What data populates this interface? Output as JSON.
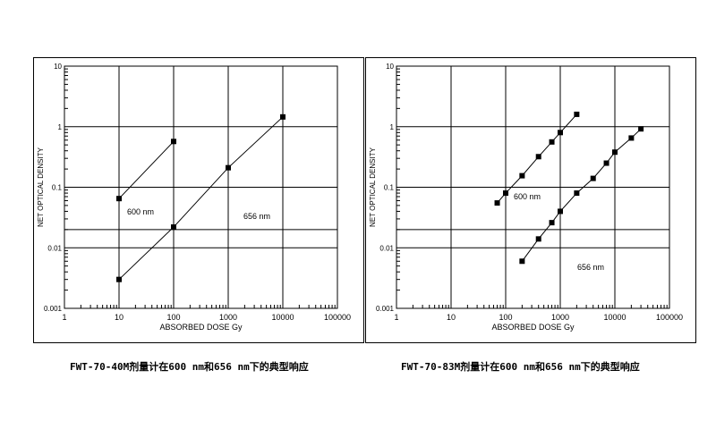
{
  "chart_data": [
    {
      "type": "scatter",
      "title": "",
      "xlabel": "ABSORBED DOSE Gy",
      "ylabel": "NET OPTICAL DENSITY",
      "xscale": "log",
      "yscale": "log",
      "xlim": [
        1,
        100000
      ],
      "ylim": [
        0.001,
        10
      ],
      "x_tick_labels": [
        "1",
        "10",
        "100",
        "1000",
        "10000",
        "100000"
      ],
      "y_tick_labels": [
        "0.001",
        "0.01",
        "0.1",
        "1",
        "10"
      ],
      "grid": "decades",
      "extra_hline": 0.02,
      "series": [
        {
          "name": "600 nm",
          "x": [
            10,
            100
          ],
          "y": [
            0.065,
            0.57
          ]
        },
        {
          "name": "656 nm",
          "x": [
            10,
            100,
            1000,
            10000
          ],
          "y": [
            0.003,
            0.022,
            0.21,
            1.45
          ]
        }
      ],
      "caption": "FWT-70-40M剂量计在600 nm和656 nm下的典型响应"
    },
    {
      "type": "scatter",
      "title": "",
      "xlabel": "ABSORBED DOSE Gy",
      "ylabel": "NET OPTICAL DENSITY",
      "xscale": "log",
      "yscale": "log",
      "xlim": [
        1,
        100000
      ],
      "ylim": [
        0.001,
        10
      ],
      "x_tick_labels": [
        "1",
        "10",
        "100",
        "1000",
        "10000",
        "100000"
      ],
      "y_tick_labels": [
        "0.001",
        "0.01",
        "0.1",
        "1",
        "10"
      ],
      "grid": "decades",
      "extra_hline": 0.02,
      "series": [
        {
          "name": "600 nm",
          "x": [
            70,
            100,
            200,
            400,
            700,
            1000,
            2000
          ],
          "y": [
            0.055,
            0.08,
            0.155,
            0.32,
            0.56,
            0.8,
            1.6
          ]
        },
        {
          "name": "656 nm",
          "x": [
            200,
            400,
            700,
            1000,
            2000,
            4000,
            7000,
            10000,
            20000,
            30000
          ],
          "y": [
            0.006,
            0.014,
            0.026,
            0.04,
            0.08,
            0.14,
            0.25,
            0.38,
            0.65,
            0.92
          ]
        }
      ],
      "caption": "FWT-70-83M剂量计在600 nm和656 nm下的典型响应"
    }
  ]
}
